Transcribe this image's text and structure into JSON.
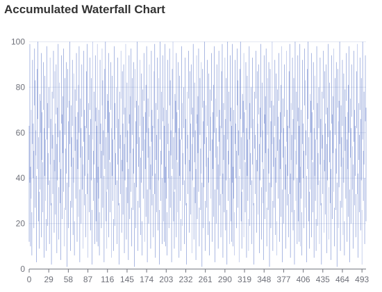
{
  "chart_data": {
    "type": "bar",
    "title": "Accumulated Waterfall Chart",
    "xlabel": "",
    "ylabel": "",
    "ylim": [
      0,
      100
    ],
    "yticks": [
      0,
      20,
      40,
      60,
      80,
      100
    ],
    "xticks": [
      0,
      29,
      58,
      87,
      116,
      145,
      174,
      203,
      232,
      261,
      290,
      319,
      348,
      377,
      406,
      435,
      464,
      493
    ],
    "grid": true,
    "legend": "none",
    "colors": {
      "bar": "#5470c6",
      "grid": "#e0e6f1",
      "axis": "#6e7079"
    },
    "x": {
      "start": 0,
      "end": 499
    },
    "bars": [
      {
        "x": 0,
        "low": 12,
        "high": 63
      },
      {
        "x": 1,
        "low": 38,
        "high": 99
      },
      {
        "x": 2,
        "low": 10,
        "high": 45
      },
      {
        "x": 3,
        "low": 31,
        "high": 70
      },
      {
        "x": 4,
        "low": 6,
        "high": 25
      },
      {
        "x": 5,
        "low": 55,
        "high": 92
      },
      {
        "x": 6,
        "low": 40,
        "high": 64
      },
      {
        "x": 7,
        "low": 18,
        "high": 52
      },
      {
        "x": 8,
        "low": 72,
        "high": 97
      },
      {
        "x": 9,
        "low": 27,
        "high": 83
      },
      {
        "x": 10,
        "low": 50,
        "high": 61
      },
      {
        "x": 11,
        "low": 3,
        "high": 41
      },
      {
        "x": 12,
        "low": 44,
        "high": 88
      },
      {
        "x": 13,
        "low": 66,
        "high": 100
      },
      {
        "x": 14,
        "low": 21,
        "high": 58
      },
      {
        "x": 15,
        "low": 9,
        "high": 34
      },
      {
        "x": 16,
        "low": 35,
        "high": 77
      },
      {
        "x": 17,
        "low": 60,
        "high": 74
      },
      {
        "x": 18,
        "low": 14,
        "high": 95
      },
      {
        "x": 19,
        "low": 48,
        "high": 69
      },
      {
        "x": 20,
        "low": 25,
        "high": 47
      },
      {
        "x": 21,
        "low": 70,
        "high": 91
      },
      {
        "x": 22,
        "low": 5,
        "high": 62
      },
      {
        "x": 23,
        "low": 41,
        "high": 85
      },
      {
        "x": 24,
        "low": 30,
        "high": 57
      },
      {
        "x": 25,
        "low": 8,
        "high": 22
      },
      {
        "x": 26,
        "low": 57,
        "high": 98
      },
      {
        "x": 27,
        "low": 19,
        "high": 73
      },
      {
        "x": 28,
        "low": 37,
        "high": 51
      },
      {
        "x": 29,
        "low": 62,
        "high": 80
      },
      {
        "x": 30,
        "low": 11,
        "high": 39
      },
      {
        "x": 31,
        "low": 46,
        "high": 93
      },
      {
        "x": 32,
        "low": 28,
        "high": 66
      },
      {
        "x": 33,
        "low": 2,
        "high": 29
      },
      {
        "x": 34,
        "low": 53,
        "high": 78
      },
      {
        "x": 35,
        "low": 33,
        "high": 59
      },
      {
        "x": 36,
        "low": 75,
        "high": 96
      },
      {
        "x": 37,
        "low": 16,
        "high": 48
      },
      {
        "x": 38,
        "low": 43,
        "high": 87
      },
      {
        "x": 39,
        "low": 24,
        "high": 64
      },
      {
        "x": 40,
        "low": 68,
        "high": 90
      },
      {
        "x": 41,
        "low": 7,
        "high": 55
      },
      {
        "x": 42,
        "low": 39,
        "high": 71
      },
      {
        "x": 43,
        "low": 58,
        "high": 99
      },
      {
        "x": 44,
        "low": 13,
        "high": 36
      },
      {
        "x": 45,
        "low": 47,
        "high": 82
      },
      {
        "x": 46,
        "low": 29,
        "high": 61
      },
      {
        "x": 47,
        "low": 4,
        "high": 44
      },
      {
        "x": 48,
        "low": 64,
        "high": 94
      },
      {
        "x": 49,
        "low": 22,
        "high": 68
      },
      {
        "x": 50,
        "low": 51,
        "high": 76
      },
      {
        "x": 51,
        "low": 34,
        "high": 97
      },
      {
        "x": 52,
        "low": 10,
        "high": 27
      },
      {
        "x": 53,
        "low": 59,
        "high": 84
      },
      {
        "x": 54,
        "low": 26,
        "high": 53
      },
      {
        "x": 55,
        "low": 42,
        "high": 91
      },
      {
        "x": 56,
        "low": 1,
        "high": 38
      },
      {
        "x": 57,
        "low": 71,
        "high": 88
      },
      {
        "x": 58,
        "low": 18,
        "high": 65
      },
      {
        "x": 59,
        "low": 36,
        "high": 74
      },
      {
        "x": 60,
        "low": 55,
        "high": 100
      },
      {
        "x": 61,
        "low": 8,
        "high": 30
      },
      {
        "x": 62,
        "low": 45,
        "high": 72
      },
      {
        "x": 63,
        "low": 27,
        "high": 58
      },
      {
        "x": 64,
        "low": 63,
        "high": 92
      },
      {
        "x": 65,
        "low": 15,
        "high": 49
      },
      {
        "x": 66,
        "low": 38,
        "high": 86
      },
      {
        "x": 67,
        "low": 6,
        "high": 21
      },
      {
        "x": 68,
        "low": 52,
        "high": 79
      },
      {
        "x": 69,
        "low": 31,
        "high": 67
      },
      {
        "x": 70,
        "low": 74,
        "high": 95
      },
      {
        "x": 71,
        "low": 12,
        "high": 57
      },
      {
        "x": 72,
        "low": 44,
        "high": 69
      },
      {
        "x": 73,
        "low": 23,
        "high": 81
      },
      {
        "x": 74,
        "low": 60,
        "high": 98
      },
      {
        "x": 75,
        "low": 3,
        "high": 35
      },
      {
        "x": 76,
        "low": 49,
        "high": 75
      },
      {
        "x": 77,
        "low": 20,
        "high": 62
      },
      {
        "x": 78,
        "low": 67,
        "high": 90
      },
      {
        "x": 79,
        "low": 35,
        "high": 54
      },
      {
        "x": 80,
        "low": 9,
        "high": 46
      },
      {
        "x": 81,
        "low": 56,
        "high": 96
      },
      {
        "x": 82,
        "low": 28,
        "high": 70
      },
      {
        "x": 83,
        "low": 41,
        "high": 63
      },
      {
        "x": 84,
        "low": 14,
        "high": 33
      },
      {
        "x": 85,
        "low": 62,
        "high": 87
      },
      {
        "x": 86,
        "low": 33,
        "high": 99
      },
      {
        "x": 87,
        "low": 5,
        "high": 42
      },
      {
        "x": 88,
        "low": 48,
        "high": 73
      },
      {
        "x": 89,
        "low": 25,
        "high": 59
      },
      {
        "x": 90,
        "low": 70,
        "high": 93
      },
      {
        "x": 91,
        "low": 17,
        "high": 66
      },
      {
        "x": 92,
        "low": 39,
        "high": 84
      },
      {
        "x": 93,
        "low": 2,
        "high": 26
      },
      {
        "x": 94,
        "low": 57,
        "high": 100
      },
      {
        "x": 95,
        "low": 30,
        "high": 52
      },
      {
        "x": 96,
        "low": 46,
        "high": 78
      },
      {
        "x": 97,
        "low": 11,
        "high": 40
      },
      {
        "x": 98,
        "low": 65,
        "high": 94
      },
      {
        "x": 99,
        "low": 21,
        "high": 71
      }
    ]
  }
}
